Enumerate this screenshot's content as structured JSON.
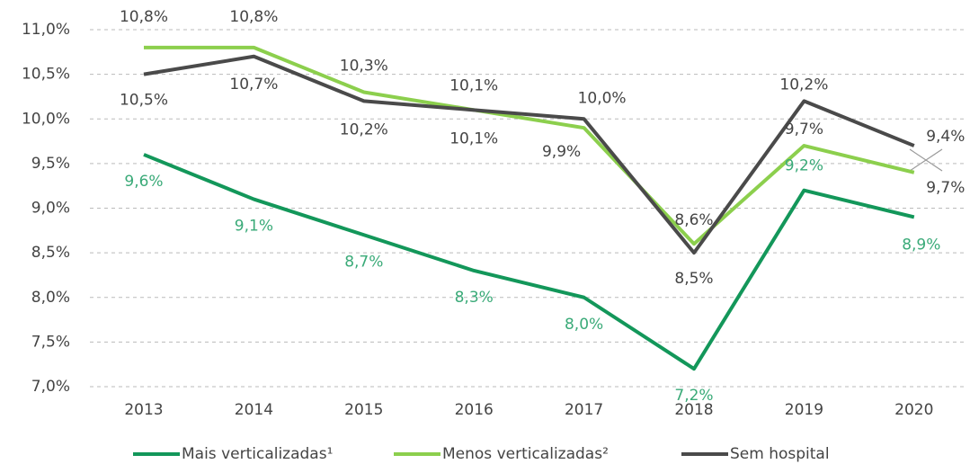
{
  "chart_data": {
    "type": "line",
    "categories": [
      "2013",
      "2014",
      "2015",
      "2016",
      "2017",
      "2018",
      "2019",
      "2020"
    ],
    "series": [
      {
        "name": "Mais verticalizadas¹",
        "color": "#13975a",
        "label_color": "#3aaa78",
        "values": [
          9.6,
          9.1,
          8.7,
          8.3,
          8.0,
          7.2,
          9.2,
          8.9
        ],
        "value_labels": [
          "9,6%",
          "9,1%",
          "8,7%",
          "8,3%",
          "8,0%",
          "7,2%",
          "9,2%",
          "8,9%"
        ]
      },
      {
        "name": "Menos verticalizadas²",
        "color": "#8ccf4d",
        "label_color": "#444444",
        "values": [
          10.8,
          10.8,
          10.3,
          10.1,
          9.9,
          8.6,
          9.7,
          9.4
        ],
        "value_labels": [
          "10,8%",
          "10,8%",
          "10,3%",
          "10,1%",
          "9,9%",
          "8,6%",
          "9,7%",
          "9,4%"
        ]
      },
      {
        "name": "Sem hospital",
        "color": "#4a4a4a",
        "label_color": "#444444",
        "values": [
          10.5,
          10.7,
          10.2,
          10.1,
          10.0,
          8.5,
          10.2,
          9.7
        ],
        "value_labels": [
          "10,5%",
          "10,7%",
          "10,2%",
          "10,1%",
          "10,0%",
          "8,5%",
          "10,2%",
          "9,7%"
        ]
      }
    ],
    "ylim": [
      7.0,
      11.0
    ],
    "yticks": [
      {
        "value": 7.0,
        "label": "7,0%"
      },
      {
        "value": 7.5,
        "label": "7,5%"
      },
      {
        "value": 8.0,
        "label": "8,0%"
      },
      {
        "value": 8.5,
        "label": "8,5%"
      },
      {
        "value": 9.0,
        "label": "9,0%"
      },
      {
        "value": 9.5,
        "label": "9,5%"
      },
      {
        "value": 10.0,
        "label": "10,0%"
      },
      {
        "value": 10.5,
        "label": "10,5%"
      },
      {
        "value": 11.0,
        "label": "11,0%"
      }
    ],
    "grid": true
  }
}
